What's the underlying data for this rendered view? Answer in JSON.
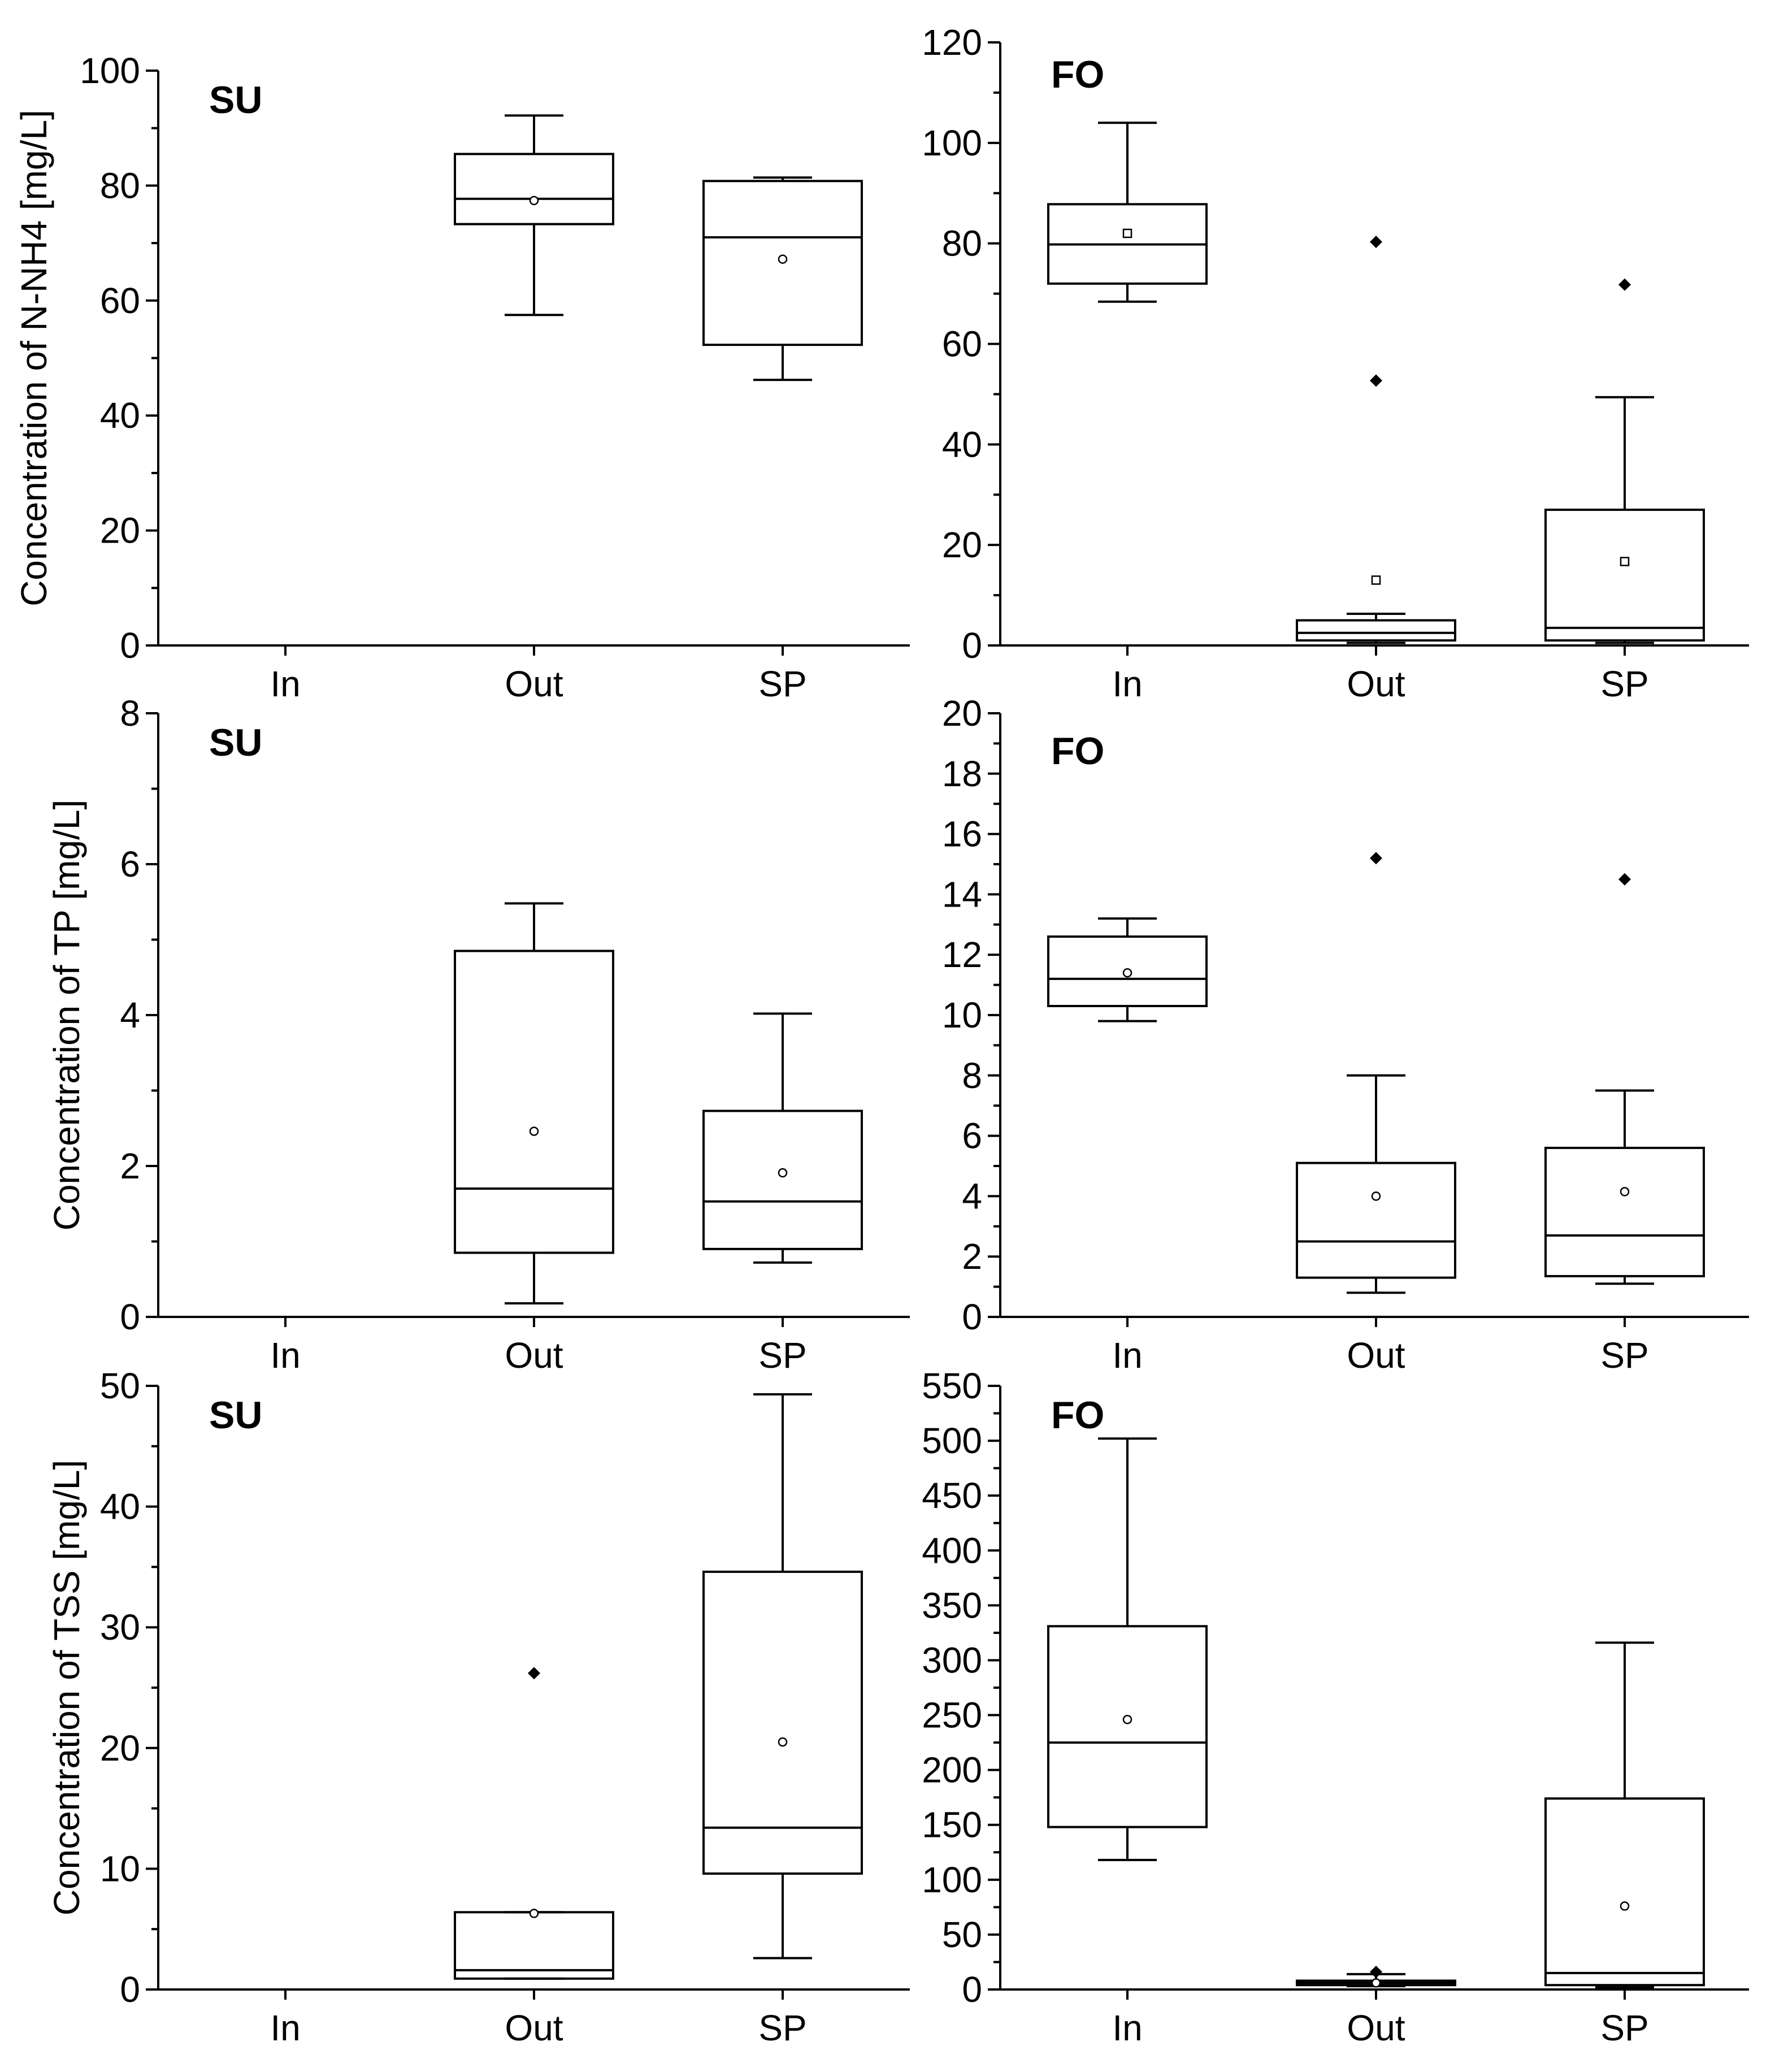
{
  "chart_data": [
    {
      "type": "box",
      "panel": "SU",
      "ylabel": "Concentration of N-NH4 [mg/L]",
      "ylim": [
        0,
        100
      ],
      "yticks": [
        0,
        20,
        40,
        60,
        80,
        100
      ],
      "categories": [
        "In",
        "Out",
        "SP"
      ],
      "boxes": [
        null,
        {
          "min": 57.5,
          "q1": 73.3,
          "median": 77.7,
          "q3": 85.5,
          "max": 92.2,
          "mean": 77.4,
          "outliers": []
        },
        {
          "min": 46.2,
          "q1": 52.3,
          "median": 71.0,
          "q3": 80.8,
          "max": 81.4,
          "mean": 67.2,
          "outliers": []
        }
      ]
    },
    {
      "type": "box",
      "panel": "FO",
      "ylabel": "",
      "ylim": [
        0,
        120
      ],
      "yticks": [
        0,
        20,
        40,
        60,
        80,
        100,
        120
      ],
      "categories": [
        "In",
        "Out",
        "SP"
      ],
      "boxes": [
        {
          "min": 68.4,
          "q1": 72.0,
          "median": 79.8,
          "q3": 87.8,
          "max": 104.0,
          "mean": 82.0,
          "outliers": []
        },
        {
          "min": 0.5,
          "q1": 1.0,
          "median": 2.5,
          "q3": 5.0,
          "max": 6.3,
          "mean": 13.0,
          "outliers": [
            52.7,
            80.3
          ]
        },
        {
          "min": 0.5,
          "q1": 1.0,
          "median": 3.5,
          "q3": 27.0,
          "max": 49.4,
          "mean": 16.7,
          "outliers": [
            71.8
          ]
        }
      ]
    },
    {
      "type": "box",
      "panel": "SU",
      "ylabel": "Concentration of TP [mg/L]",
      "ylim": [
        0,
        8
      ],
      "yticks": [
        0,
        2,
        4,
        6,
        8
      ],
      "categories": [
        "In",
        "Out",
        "SP"
      ],
      "boxes": [
        null,
        {
          "min": 0.18,
          "q1": 0.85,
          "median": 1.7,
          "q3": 4.85,
          "max": 5.48,
          "mean": 2.46,
          "outliers": []
        },
        {
          "min": 0.72,
          "q1": 0.9,
          "median": 1.53,
          "q3": 2.73,
          "max": 4.02,
          "mean": 1.91,
          "outliers": []
        }
      ]
    },
    {
      "type": "box",
      "panel": "FO",
      "ylabel": "",
      "ylim": [
        0,
        20
      ],
      "yticks": [
        0,
        2,
        4,
        6,
        8,
        10,
        12,
        14,
        16,
        18,
        20
      ],
      "categories": [
        "In",
        "Out",
        "SP"
      ],
      "boxes": [
        {
          "min": 9.8,
          "q1": 10.3,
          "median": 11.2,
          "q3": 12.6,
          "max": 13.2,
          "mean": 11.4,
          "outliers": []
        },
        {
          "min": 0.8,
          "q1": 1.3,
          "median": 2.5,
          "q3": 5.1,
          "max": 8.0,
          "mean": 4.0,
          "outliers": [
            15.2
          ]
        },
        {
          "min": 1.1,
          "q1": 1.35,
          "median": 2.7,
          "q3": 5.6,
          "max": 7.5,
          "mean": 4.15,
          "outliers": [
            14.5
          ]
        }
      ]
    },
    {
      "type": "box",
      "panel": "SU",
      "ylabel": "Concentration of TSS [mg/L]",
      "ylim": [
        0,
        50
      ],
      "yticks": [
        0,
        10,
        20,
        30,
        40,
        50
      ],
      "categories": [
        "In",
        "Out",
        "SP"
      ],
      "boxes": [
        null,
        {
          "min": 0.9,
          "q1": 0.9,
          "median": 1.6,
          "q3": 6.4,
          "max": 6.4,
          "mean": 6.3,
          "outliers": [
            26.2
          ]
        },
        {
          "min": 2.6,
          "q1": 9.6,
          "median": 13.4,
          "q3": 34.6,
          "max": 49.3,
          "mean": 20.5,
          "outliers": []
        }
      ]
    },
    {
      "type": "box",
      "panel": "FO",
      "ylabel": "",
      "ylim": [
        0,
        550
      ],
      "yticks": [
        0,
        50,
        100,
        150,
        200,
        250,
        300,
        350,
        400,
        450,
        500,
        550
      ],
      "categories": [
        "In",
        "Out",
        "SP"
      ],
      "boxes": [
        {
          "min": 118,
          "q1": 148,
          "median": 225,
          "q3": 331,
          "max": 502,
          "mean": 246,
          "outliers": []
        },
        {
          "min": 3,
          "q1": 4,
          "median": 6,
          "q3": 8,
          "max": 14,
          "mean": 6,
          "outliers": [
            16
          ]
        },
        {
          "min": 2,
          "q1": 4,
          "median": 15,
          "q3": 174,
          "max": 316,
          "mean": 76,
          "outliers": []
        }
      ]
    }
  ]
}
